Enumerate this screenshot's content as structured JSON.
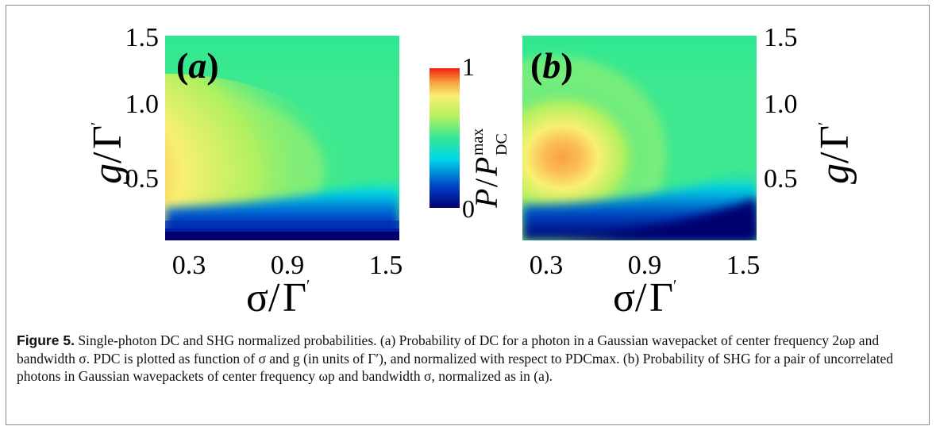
{
  "figure": {
    "panels": [
      {
        "label_open": "(",
        "label_letter": "a",
        "label_close": ")"
      },
      {
        "label_open": "(",
        "label_letter": "b",
        "label_close": ")"
      }
    ],
    "x_ticks": [
      "0.3",
      "0.9",
      "1.5"
    ],
    "y_ticks": [
      "1.5",
      "1.0",
      "0.5"
    ],
    "colorbar": {
      "max_label": "1",
      "min_label": "0"
    },
    "colors": [
      "#00006e",
      "#0040c8",
      "#00d8e8",
      "#33e896",
      "#b0f060",
      "#f8f070",
      "#f8a040",
      "#ee2010"
    ]
  },
  "caption": {
    "label": "Figure 5.",
    "text": "Single-photon DC and SHG normalized probabilities. (a) Probability of DC for a photon in a Gaussian wavepacket of center frequency 2ωp and bandwidth σ. PDC is plotted as function of σ and g (in units of Γ′), and normalized with respect to PDCmax. (b) Probability of SHG for a pair of uncorrelated photons in Gaussian wavepackets of center frequency ωp and bandwidth σ, normalized as in (a)."
  },
  "chart_data": [
    {
      "type": "heatmap",
      "panel": "a",
      "xlabel": "σ/Γ′",
      "ylabel": "g/Γ′",
      "xlim": [
        0.15,
        1.6
      ],
      "ylim": [
        0.05,
        1.55
      ],
      "x_ticks": [
        0.3,
        0.9,
        1.5
      ],
      "y_ticks": [
        0.5,
        1.0,
        1.5
      ],
      "colorbar_range": [
        0,
        1
      ],
      "peak": {
        "x": 0.2,
        "y": 0.6,
        "value": 1.0
      }
    },
    {
      "type": "heatmap",
      "panel": "b",
      "xlabel": "σ/Γ′",
      "ylabel": "g/Γ′",
      "xlim": [
        0.15,
        1.6
      ],
      "ylim": [
        0.05,
        1.55
      ],
      "x_ticks": [
        0.3,
        0.9,
        1.5
      ],
      "y_ticks": [
        0.5,
        1.0,
        1.5
      ],
      "colorbar_range": [
        0,
        1
      ],
      "peak": {
        "x": 0.42,
        "y": 0.68,
        "value": 0.8
      }
    }
  ]
}
